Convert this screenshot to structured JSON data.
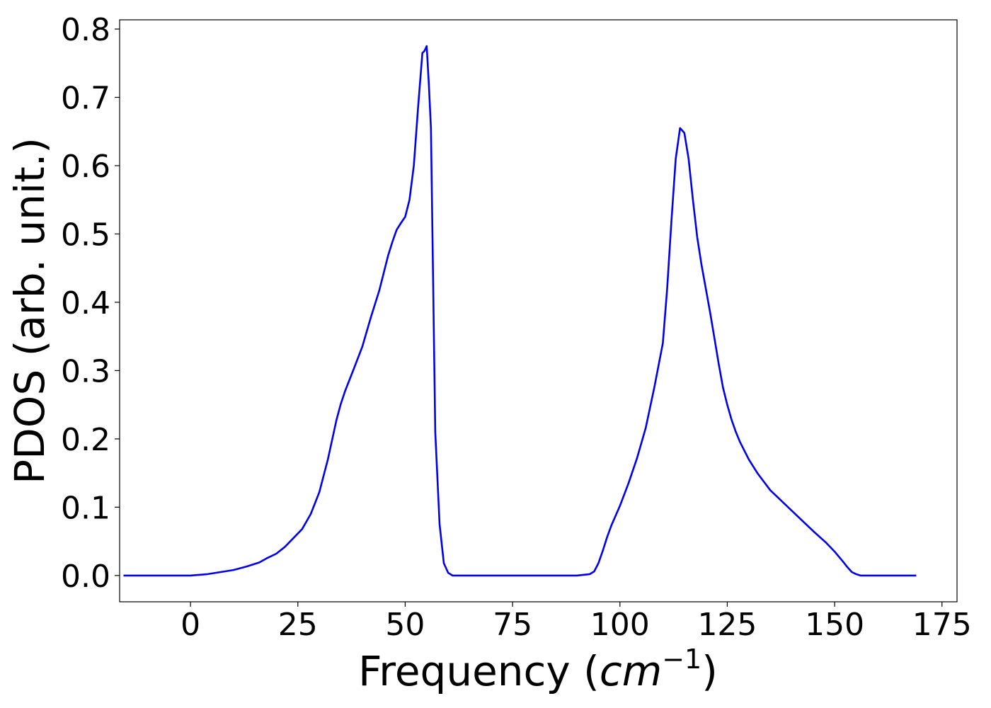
{
  "chart_data": {
    "type": "line",
    "xlabel_main": "Frequency (",
    "xlabel_unit": "cm",
    "xlabel_exp": "−1",
    "xlabel_close": ")",
    "ylabel": "PDOS (arb. unit.)",
    "xlim": [
      -16.5,
      178.5
    ],
    "ylim": [
      -0.0385,
      0.8135
    ],
    "xticks": [
      0,
      25,
      50,
      75,
      100,
      125,
      150,
      175
    ],
    "xtick_labels": [
      "0",
      "25",
      "50",
      "75",
      "100",
      "125",
      "150",
      "175"
    ],
    "yticks": [
      0.0,
      0.1,
      0.2,
      0.3,
      0.4,
      0.5,
      0.6,
      0.7,
      0.8
    ],
    "ytick_labels": [
      "0.0",
      "0.1",
      "0.2",
      "0.3",
      "0.4",
      "0.5",
      "0.6",
      "0.7",
      "0.8"
    ],
    "grid": false,
    "series": [
      {
        "color": "#0000ee",
        "x": [
          -15.6,
          -10,
          -5,
          0,
          4,
          7,
          10,
          13,
          16,
          18,
          20,
          22,
          24,
          26,
          28,
          30,
          32,
          34,
          35,
          36,
          38,
          40,
          42,
          44,
          46,
          47,
          48,
          49,
          50,
          51,
          52,
          53,
          54,
          54.5,
          55,
          55.5,
          56,
          57,
          58,
          59,
          60,
          61,
          62,
          65,
          70,
          80,
          90,
          93,
          94,
          95,
          96,
          97,
          98,
          100,
          102,
          104,
          106,
          108,
          110,
          111,
          112,
          113,
          114,
          115,
          116,
          117,
          118,
          119,
          120,
          121,
          122,
          123,
          124,
          125,
          126,
          127,
          128,
          130,
          132,
          135,
          140,
          145,
          148,
          150,
          152,
          153,
          154,
          155,
          156,
          160,
          165,
          169
        ],
        "y": [
          0.0,
          0.0,
          0.0,
          0.0,
          0.002,
          0.005,
          0.008,
          0.013,
          0.019,
          0.026,
          0.032,
          0.042,
          0.055,
          0.068,
          0.09,
          0.122,
          0.17,
          0.228,
          0.251,
          0.27,
          0.302,
          0.335,
          0.378,
          0.418,
          0.468,
          0.488,
          0.506,
          0.516,
          0.525,
          0.55,
          0.6,
          0.685,
          0.765,
          0.768,
          0.775,
          0.72,
          0.655,
          0.21,
          0.075,
          0.018,
          0.004,
          0.0,
          0.0,
          0.0,
          0.0,
          0.0,
          0.0,
          0.002,
          0.006,
          0.018,
          0.036,
          0.056,
          0.073,
          0.102,
          0.135,
          0.172,
          0.216,
          0.275,
          0.34,
          0.42,
          0.52,
          0.61,
          0.655,
          0.648,
          0.61,
          0.55,
          0.495,
          0.455,
          0.42,
          0.385,
          0.348,
          0.31,
          0.275,
          0.25,
          0.228,
          0.21,
          0.195,
          0.17,
          0.15,
          0.125,
          0.095,
          0.065,
          0.048,
          0.035,
          0.02,
          0.012,
          0.005,
          0.002,
          0.0,
          0.0,
          0.0,
          0.0
        ]
      }
    ]
  }
}
